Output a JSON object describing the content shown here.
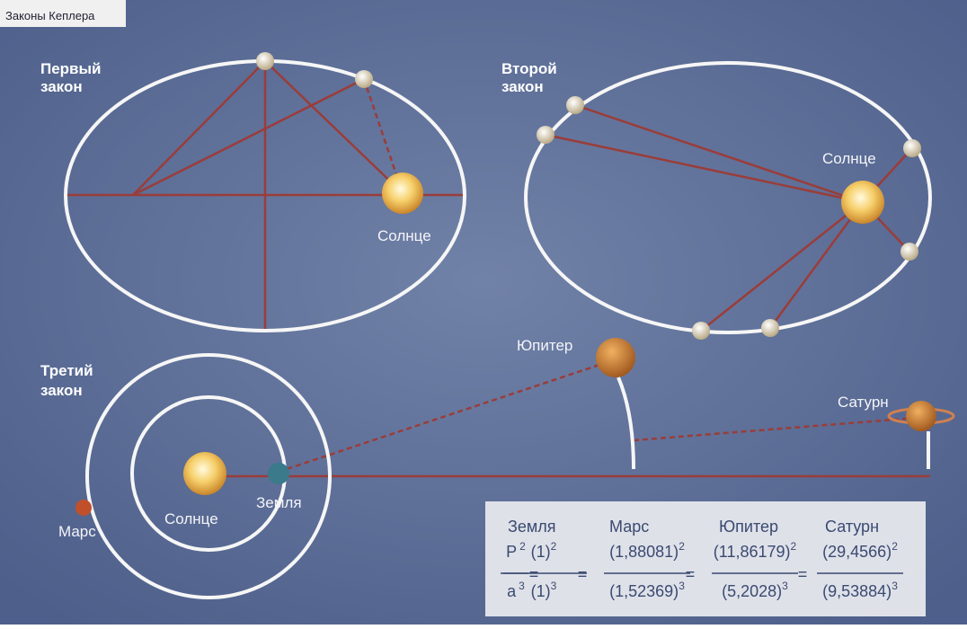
{
  "title": "Законы Кеплера",
  "first_law": {
    "heading": [
      "Первый",
      "закон"
    ],
    "sun": "Солнце"
  },
  "second_law": {
    "heading": [
      "Второй",
      "закон"
    ],
    "sun": "Солнце"
  },
  "third_law": {
    "heading": [
      "Третий",
      "закон"
    ],
    "sun": "Солнце",
    "earth": "Земля",
    "mars": "Марс",
    "jupiter": "Юпитер",
    "saturn": "Сатурн"
  },
  "table": {
    "headers": [
      "Земля",
      "Марс",
      "Юпитер",
      "Сатурн"
    ],
    "equals": "=",
    "lhs": {
      "num": "P",
      "num_exp": "2",
      "den": "a",
      "den_exp": "3"
    },
    "terms": [
      {
        "num": "(1)",
        "num_exp": "2",
        "den": "(1)",
        "den_exp": "3"
      },
      {
        "num": "(1,88081)",
        "num_exp": "2",
        "den": "(1,52369)",
        "den_exp": "3"
      },
      {
        "num": "(11,86179)",
        "num_exp": "2",
        "den": "(5,2028)",
        "den_exp": "3"
      },
      {
        "num": "(29,4566)",
        "num_exp": "2",
        "den": "(9,53884)",
        "den_exp": "3"
      }
    ]
  }
}
